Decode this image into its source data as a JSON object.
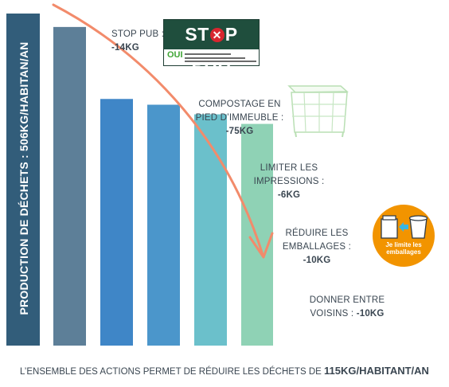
{
  "chart_data": {
    "type": "bar",
    "title": "",
    "xlabel": "",
    "ylabel": "PRODUCTION DE DÉCHETS : 506KG/HABITAN/AN",
    "categories": [
      "PRODUCTION DE DÉCHETS : 506KG/HABITAN/AN",
      "STOP PUB",
      "COMPOSTAGE EN PIED D’IMMEUBLE",
      "LIMITER LES IMPRESSIONS",
      "RÉDUIRE LES EMBALLAGES",
      "DONNER ENTRE VOISINS"
    ],
    "values": [
      506,
      492,
      417,
      411,
      401,
      391
    ],
    "reductions_kg": [
      0,
      -14,
      -75,
      -6,
      -10,
      -10
    ],
    "ylim": [
      160,
      506
    ],
    "grid": false,
    "colors": [
      "#325d7a",
      "#5d7f98",
      "#3f86c7",
      "#4b96cb",
      "#6bc0cb",
      "#8fd2b5"
    ],
    "arrow_color": "#f28b6b"
  },
  "annotations": [
    {
      "label": "STOP PUB :",
      "value": "-14KG"
    },
    {
      "label": "COMPOSTAGE EN PIED D’IMMEUBLE :",
      "value": "-75KG"
    },
    {
      "label": "LIMITER LES IMPRESSIONS :",
      "value": "-6KG"
    },
    {
      "label": "RÉDUIRE LES EMBALLAGES :",
      "value": "-10KG"
    },
    {
      "label": "DONNER ENTRE VOISINS :",
      "value": "-10KG"
    }
  ],
  "logos": {
    "stop_pub": {
      "title": "STOP PUB",
      "sub": "OUI"
    },
    "emballages": {
      "text": "Je limite les emballages"
    }
  },
  "caption": {
    "text": "L’ENSEMBLE DES ACTIONS PERMET DE RÉDUIRE LES DÉCHETS DE ",
    "emphasis": "115KG/HABITANT/AN"
  }
}
